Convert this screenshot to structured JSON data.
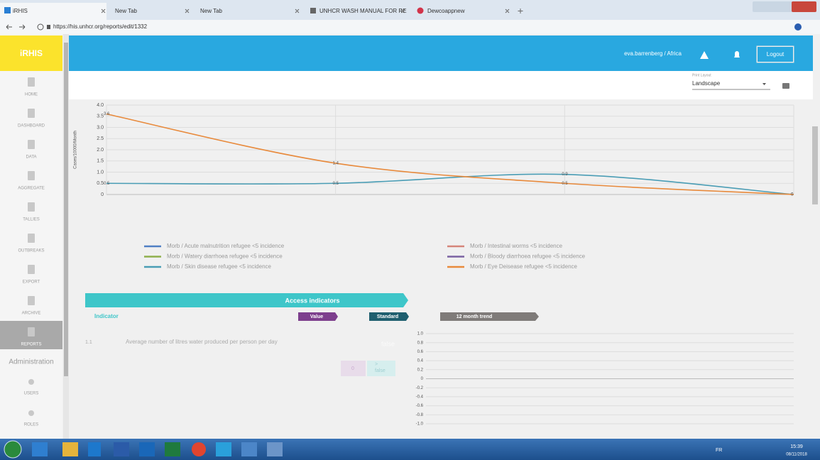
{
  "browser": {
    "tabs": [
      "iRHIS",
      "New Tab",
      "New Tab",
      "UNHCR WASH MANUAL FOR RE",
      "Dewcoappnew"
    ],
    "url": "https://his.unhcr.org/reports/edit/1332"
  },
  "sidebar": {
    "logo": "iRHIS",
    "items": [
      "HOME",
      "DASHBOARD",
      "DATA",
      "AGGREGATE",
      "TALLIES",
      "OUTBREAKS",
      "EXPORT",
      "ARCHIVE",
      "REPORTS"
    ],
    "section": "Administration",
    "admin_items": [
      "USERS",
      "ROLES"
    ]
  },
  "header": {
    "user": "eva.barrenberg / Africa",
    "logout": "Logout",
    "print_layout_label": "Print Layout",
    "print_layout_value": "Landscape"
  },
  "chart_data": [
    {
      "type": "line",
      "y_label": "Cases/10000/Month",
      "categories": [
        null,
        null,
        null,
        null
      ],
      "ylim": [
        0,
        4
      ],
      "yticks": [
        0,
        0.5,
        {
          "value": 1,
          "label": "1.0"
        },
        1.5,
        {
          "value": 2,
          "label": "2.0"
        },
        2.5,
        {
          "value": 3,
          "label": "3.0"
        },
        3.5,
        {
          "value": 4,
          "label": "4.0"
        }
      ],
      "grid": true,
      "data_labels": true,
      "series": [
        {
          "name": "Morb / Acute malnutrition refugee <5 incidence",
          "color": "#4f7fc4",
          "values": [
            null,
            null,
            null,
            null
          ]
        },
        {
          "name": "Morb / Intestinal worms <5 incidence",
          "color": "#d5857a",
          "values": [
            null,
            null,
            null,
            null
          ]
        },
        {
          "name": "Morb / Watery diarrhoea refugee <5 incidence",
          "color": "#8fb04d",
          "values": [
            null,
            null,
            null,
            null
          ]
        },
        {
          "name": "Morb / Bloody diarrhoea refugee <5 incidence",
          "color": "#7b62a3",
          "values": [
            null,
            null,
            null,
            null
          ]
        },
        {
          "name": "Morb / Skin disease refugee <5 incidence",
          "color": "#4a9db5",
          "values": [
            0.5,
            0.5,
            0.9,
            0
          ]
        },
        {
          "name": "Morb / Eye Deisease refugee <5 incidence",
          "color": "#e88a3c",
          "values": [
            3.6,
            1.4,
            0.5,
            0
          ]
        }
      ]
    },
    {
      "type": "line",
      "ylim": [
        -1,
        1
      ],
      "grid": true,
      "data_labels": false,
      "yticks": [
        {
          "value": 1,
          "label": "1.0"
        },
        0.8,
        0.6,
        0.4,
        0.2,
        0,
        -0.2,
        -0.4,
        -0.6,
        -0.8,
        {
          "value": -1,
          "label": "-1.0"
        }
      ],
      "categories": [],
      "series": []
    }
  ],
  "access": {
    "banner": "Access indicators",
    "columns": [
      "Indicator",
      "Value",
      "Standard",
      "12 month trend"
    ],
    "rows": [
      {
        "number": "1.1",
        "indicator": "Average number of litres water produced per person per day",
        "result": "false",
        "value": "0",
        "compare": ">",
        "standard": "false"
      }
    ]
  },
  "taskbar": {
    "language": "FR",
    "time": "15:39",
    "date": "08/11/2018"
  }
}
